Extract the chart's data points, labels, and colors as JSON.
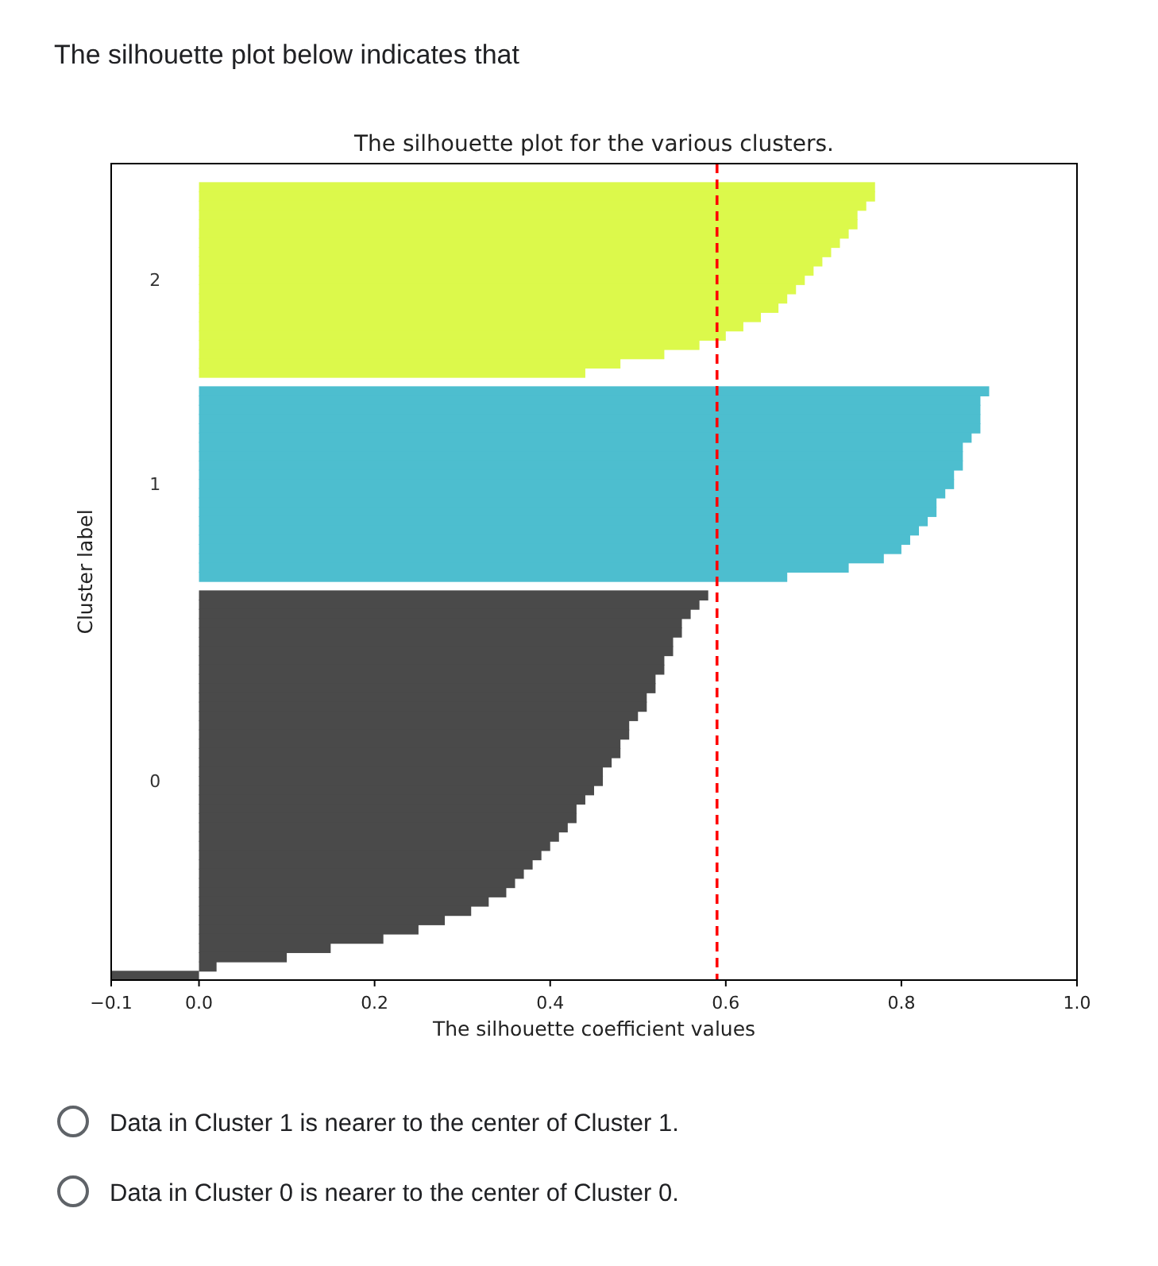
{
  "chart_data": {
    "type": "bar",
    "orientation": "horizontal",
    "title": "The silhouette plot for the various clusters.",
    "xlabel": "The silhouette coefficient values",
    "ylabel": "Cluster label",
    "annotations": [
      "The silhouette plot below indicates that",
      "Data in Cluster 1 is nearer to the center of Cluster 1.",
      "Data in Cluster 0 is nearer to the center of Cluster 0."
    ],
    "categories": [
      null,
      null,
      null,
      null,
      null,
      null,
      null,
      null,
      null,
      null,
      null,
      null,
      "2",
      null,
      null,
      null,
      null,
      null,
      null,
      null,
      null,
      null,
      null,
      null,
      null,
      null,
      null,
      null,
      null,
      null,
      null,
      null,
      null,
      null,
      "1",
      null,
      null,
      null,
      null,
      null,
      null,
      null,
      null,
      null,
      null,
      null,
      null,
      null,
      null,
      null,
      null,
      null,
      null,
      null,
      null,
      null,
      null,
      null,
      null,
      null,
      null,
      null,
      null,
      null,
      null,
      null,
      "0",
      null,
      null,
      null,
      null,
      null,
      null,
      null,
      null,
      null,
      null,
      null,
      null,
      null,
      null,
      null,
      null,
      null,
      null,
      null,
      null,
      null
    ],
    "values": [
      null,
      null,
      0.77,
      0.77,
      0.76,
      0.75,
      0.75,
      0.74,
      0.73,
      0.72,
      0.71,
      0.7,
      0.69,
      0.68,
      0.67,
      0.66,
      0.64,
      0.62,
      0.6,
      0.57,
      0.53,
      0.48,
      0.44,
      null,
      0.9,
      0.89,
      0.89,
      0.89,
      0.89,
      0.88,
      0.87,
      0.87,
      0.87,
      0.86,
      0.86,
      0.85,
      0.84,
      0.84,
      0.83,
      0.82,
      0.81,
      0.8,
      0.78,
      0.74,
      0.67,
      null,
      0.58,
      0.57,
      0.56,
      0.55,
      0.55,
      0.54,
      0.54,
      0.53,
      0.53,
      0.52,
      0.52,
      0.51,
      0.51,
      0.5,
      0.49,
      0.49,
      0.48,
      0.48,
      0.47,
      0.46,
      0.46,
      0.45,
      0.44,
      0.43,
      0.43,
      0.42,
      0.41,
      0.4,
      0.39,
      0.38,
      0.37,
      0.36,
      0.35,
      0.33,
      0.31,
      0.28,
      0.25,
      0.21,
      0.15,
      0.1,
      0.02,
      -0.1
    ],
    "colors": [
      null,
      null,
      "#dcf94b",
      "#dcf94b",
      "#dcf94b",
      "#dcf94b",
      "#dcf94b",
      "#dcf94b",
      "#dcf94b",
      "#dcf94b",
      "#dcf94b",
      "#dcf94b",
      "#dcf94b",
      "#dcf94b",
      "#dcf94b",
      "#dcf94b",
      "#dcf94b",
      "#dcf94b",
      "#dcf94b",
      "#dcf94b",
      "#dcf94b",
      "#dcf94b",
      "#dcf94b",
      null,
      "#4dbecf",
      "#4dbecf",
      "#4dbecf",
      "#4dbecf",
      "#4dbecf",
      "#4dbecf",
      "#4dbecf",
      "#4dbecf",
      "#4dbecf",
      "#4dbecf",
      "#4dbecf",
      "#4dbecf",
      "#4dbecf",
      "#4dbecf",
      "#4dbecf",
      "#4dbecf",
      "#4dbecf",
      "#4dbecf",
      "#4dbecf",
      "#4dbecf",
      "#4dbecf",
      null,
      "#4a4a4a",
      "#4a4a4a",
      "#4a4a4a",
      "#4a4a4a",
      "#4a4a4a",
      "#4a4a4a",
      "#4a4a4a",
      "#4a4a4a",
      "#4a4a4a",
      "#4a4a4a",
      "#4a4a4a",
      "#4a4a4a",
      "#4a4a4a",
      "#4a4a4a",
      "#4a4a4a",
      "#4a4a4a",
      "#4a4a4a",
      "#4a4a4a",
      "#4a4a4a",
      "#4a4a4a",
      "#4a4a4a",
      "#4a4a4a",
      "#4a4a4a",
      "#4a4a4a",
      "#4a4a4a",
      "#4a4a4a",
      "#4a4a4a",
      "#4a4a4a",
      "#4a4a4a",
      "#4a4a4a",
      "#4a4a4a",
      "#4a4a4a",
      "#4a4a4a",
      "#4a4a4a",
      "#4a4a4a",
      "#4a4a4a",
      "#4a4a4a",
      "#4a4a4a",
      "#4a4a4a",
      "#4a4a4a",
      "#4a4a4a",
      "#4a4a4a"
    ],
    "xlim": [
      -0.1,
      1.0
    ],
    "xticks": [
      {
        "value": -0.1,
        "label": "−0.1"
      },
      {
        "value": 0,
        "label": "0.0"
      },
      0.2,
      0.4,
      0.6,
      0.8,
      {
        "value": 1,
        "label": "1.0"
      }
    ],
    "ref_lines": [
      {
        "axis": "x",
        "value": 0.59,
        "color": "#ff0000",
        "line_style": "dashed"
      }
    ]
  }
}
